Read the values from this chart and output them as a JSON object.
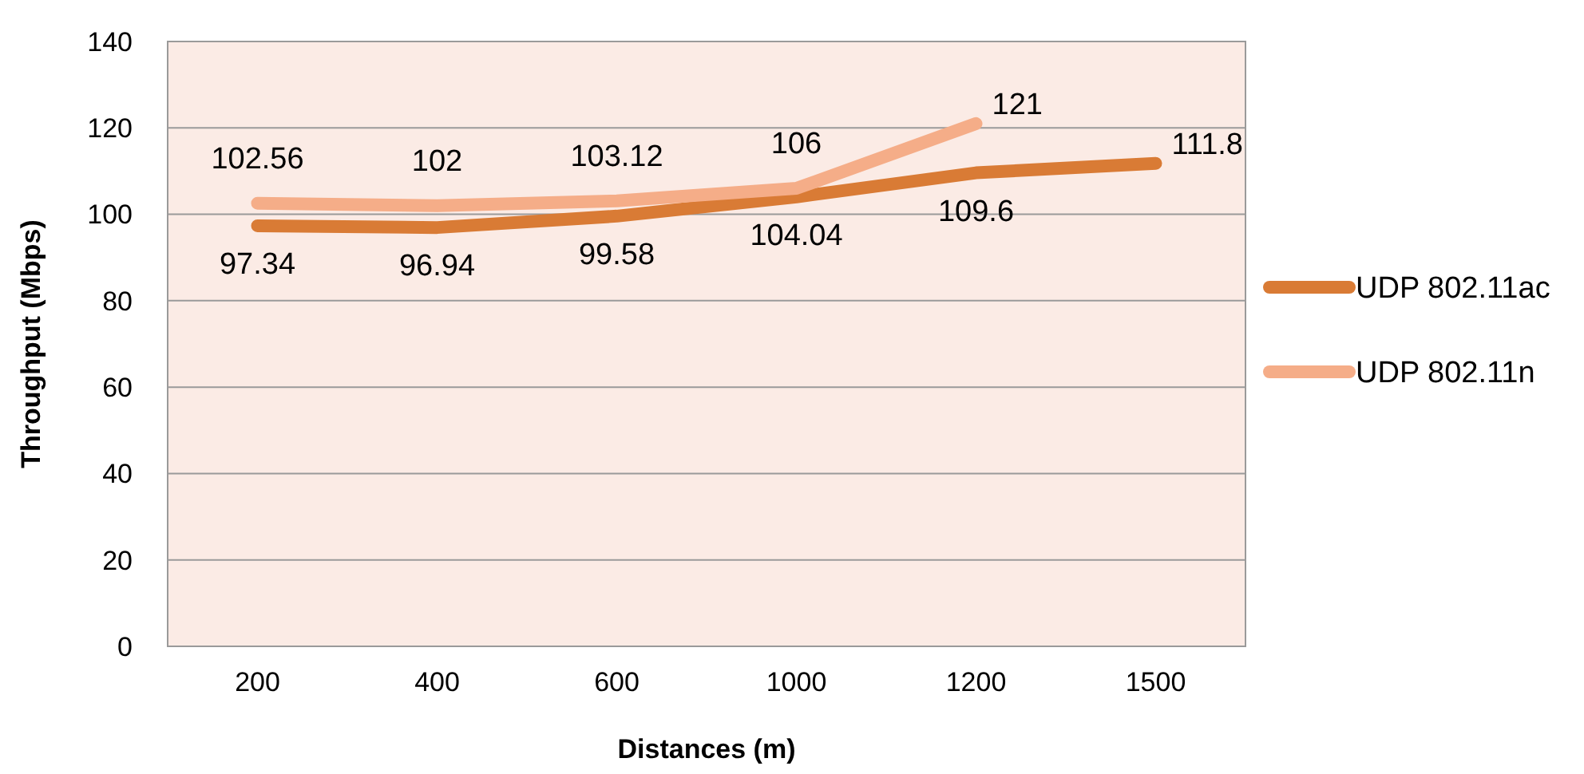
{
  "chart_data": {
    "type": "line",
    "xlabel": "Distances (m)",
    "ylabel": "Throughput (Mbps)",
    "categories": [
      "200",
      "400",
      "600",
      "1000",
      "1200",
      "1500"
    ],
    "series": [
      {
        "name": "UDP 802.11ac",
        "color": "#d97b35",
        "values": [
          97.34,
          96.94,
          99.58,
          104.04,
          109.6,
          111.8
        ]
      },
      {
        "name": "UDP 802.11n",
        "color": "#f5ad88",
        "values": [
          102.56,
          102,
          103.12,
          106,
          121,
          null
        ]
      }
    ],
    "ylim": [
      0,
      140
    ],
    "yticks": [
      0,
      20,
      40,
      60,
      80,
      100,
      120,
      140
    ],
    "grid": "y",
    "legend": "right",
    "data_labels": true,
    "marker": "none",
    "line_style": "solid"
  }
}
